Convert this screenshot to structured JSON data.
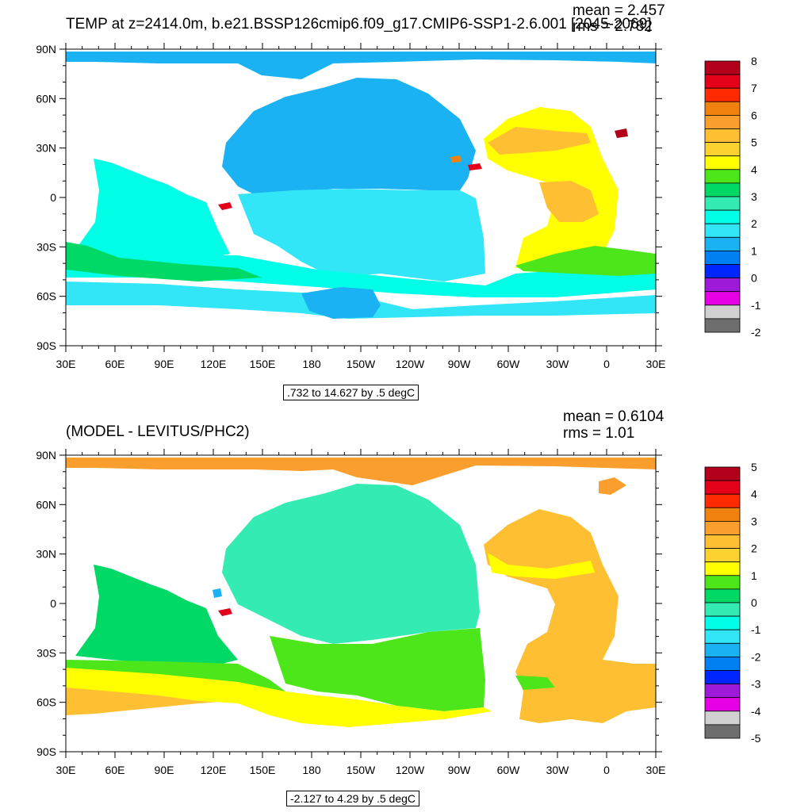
{
  "panels": [
    {
      "id": "top",
      "title": "TEMP at z=2414.0m, b.e21.BSSP126cmip6.f09_g17.CMIP6-SSP1-2.6.001 [2045-2069]",
      "mean_text": "mean = 2.457",
      "rms_text": "rms = 2.782",
      "range_text": ".732 to 14.627 by .5 degC",
      "colorbar": {
        "labels": [
          "8",
          "7",
          "6",
          "5",
          "4",
          "3",
          "2",
          "1",
          "0",
          "-1",
          "-2"
        ],
        "colors": [
          "#b3001a",
          "#e5001a",
          "#ff2a00",
          "#f2820f",
          "#fa9e2e",
          "#ffbf33",
          "#fad12e",
          "#ffff00",
          "#4de61a",
          "#00d966",
          "#33ebb3",
          "#00ffe6",
          "#33e6f7",
          "#1ab2f2",
          "#0080f2",
          "#0026ff",
          "#9e1ad9",
          "#e600e6",
          "#d1d1d1",
          "#6e6e6e"
        ]
      }
    },
    {
      "id": "bottom",
      "title": "(MODEL - LEVITUS/PHC2)",
      "mean_text": "mean = 0.6104",
      "rms_text": "rms = 1.01",
      "range_text": "-2.127 to 4.29 by .5 degC",
      "colorbar": {
        "labels": [
          "5",
          "4",
          "3",
          "2",
          "1",
          "0",
          "-1",
          "-2",
          "-3",
          "-4",
          "-5"
        ],
        "colors": [
          "#b3001a",
          "#e5001a",
          "#ff2a00",
          "#f2820f",
          "#fa9e2e",
          "#ffbf33",
          "#fad12e",
          "#ffff00",
          "#4de61a",
          "#00d966",
          "#33ebb3",
          "#00ffe6",
          "#33e6f7",
          "#1ab2f2",
          "#0080f2",
          "#0026ff",
          "#9e1ad9",
          "#e600e6",
          "#d1d1d1",
          "#6e6e6e"
        ]
      }
    }
  ],
  "axes": {
    "lat_labels": [
      "90N",
      "60N",
      "30N",
      "0",
      "30S",
      "60S",
      "90S"
    ],
    "lon_labels": [
      "30E",
      "60E",
      "90E",
      "120E",
      "150E",
      "180",
      "150W",
      "120W",
      "90W",
      "60W",
      "30W",
      "0",
      "30E"
    ]
  },
  "fill_colors": {
    "ocean_top_north_pacific": "#1ab2f2",
    "ocean_top_pacific_south": "#33e6f7",
    "ocean_top_indian": "#00ffe6",
    "ocean_top_atlantic": "#ffff00",
    "ocean_top_atlantic_north": "#ffbf33",
    "ocean_top_south_band": "#00d966",
    "ocean_top_arctic": "#1ab2f2",
    "ocean_bottom_pacific": "#33ebb3",
    "ocean_bottom_south": "#4de61a",
    "ocean_bottom_indian": "#00d966",
    "ocean_bottom_atlantic": "#ffbf33",
    "ocean_bottom_southern": "#ffff00",
    "ocean_bottom_arctic": "#fa9e2e"
  }
}
